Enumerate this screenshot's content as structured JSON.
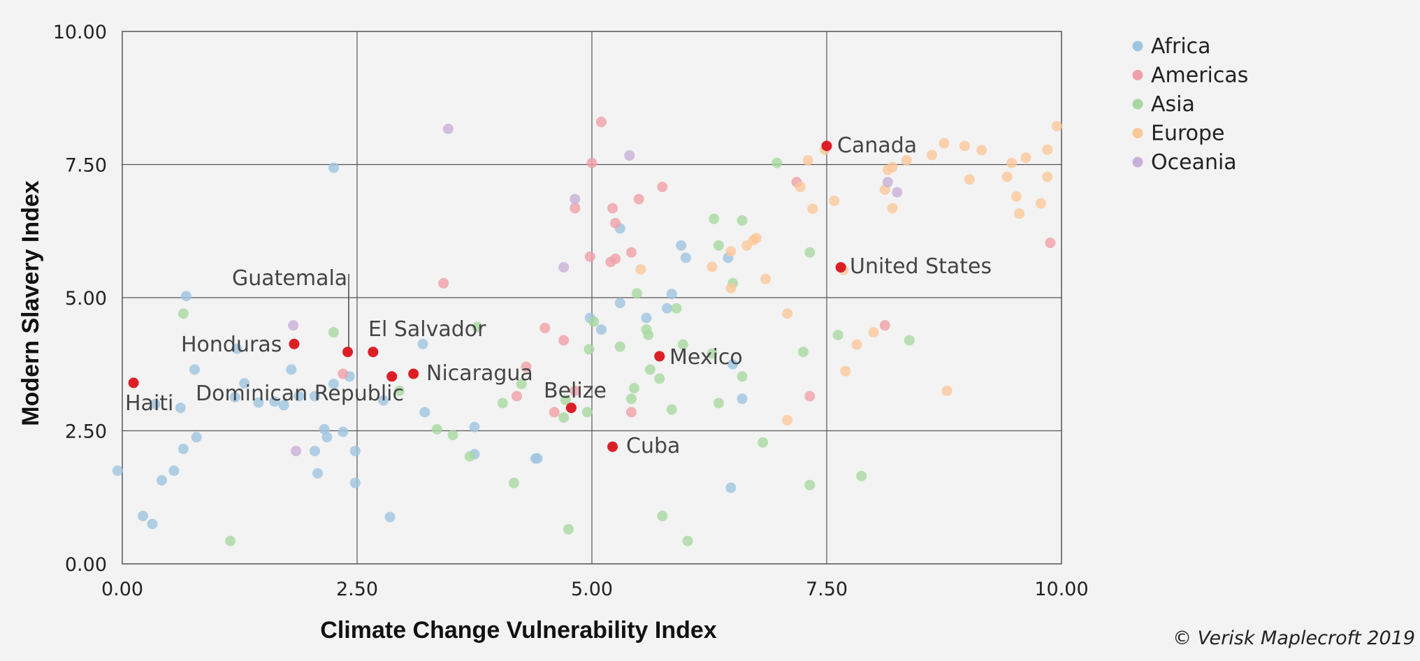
{
  "chart_data": {
    "type": "scatter",
    "xlabel": "Climate Change Vulnerability Index",
    "ylabel": "Modern Slavery Index",
    "xlim": [
      0,
      10
    ],
    "ylim": [
      0,
      10
    ],
    "xticks": [
      "0.00",
      "2.50",
      "5.00",
      "7.50",
      "10.00"
    ],
    "yticks": [
      "0.00",
      "2.50",
      "5.00",
      "7.50",
      "10.00"
    ],
    "grid": true,
    "legend": "top-right",
    "credit": "© Verisk Maplecroft 2019",
    "series": [
      {
        "name": "Africa",
        "color": "#9ec4e0",
        "points": [
          [
            -0.05,
            1.75
          ],
          [
            0.22,
            0.9
          ],
          [
            0.32,
            0.75
          ],
          [
            0.42,
            1.57
          ],
          [
            0.55,
            1.75
          ],
          [
            0.62,
            2.93
          ],
          [
            0.65,
            2.16
          ],
          [
            0.68,
            5.03
          ],
          [
            0.77,
            3.65
          ],
          [
            0.79,
            2.38
          ],
          [
            0.35,
            3.0
          ],
          [
            1.2,
            3.13
          ],
          [
            1.22,
            4.04
          ],
          [
            1.3,
            3.39
          ],
          [
            1.45,
            3.03
          ],
          [
            1.62,
            3.05
          ],
          [
            1.72,
            2.98
          ],
          [
            1.8,
            3.65
          ],
          [
            1.88,
            3.15
          ],
          [
            2.05,
            3.15
          ],
          [
            2.05,
            2.12
          ],
          [
            2.08,
            1.7
          ],
          [
            2.15,
            2.53
          ],
          [
            2.18,
            2.38
          ],
          [
            2.25,
            3.38
          ],
          [
            2.25,
            7.44
          ],
          [
            2.35,
            2.48
          ],
          [
            2.42,
            3.52
          ],
          [
            2.48,
            2.12
          ],
          [
            2.48,
            1.52
          ],
          [
            2.78,
            3.07
          ],
          [
            2.85,
            0.88
          ],
          [
            3.2,
            4.13
          ],
          [
            3.22,
            2.85
          ],
          [
            3.75,
            2.57
          ],
          [
            3.75,
            2.06
          ],
          [
            4.4,
            1.98
          ],
          [
            4.42,
            1.98
          ],
          [
            4.98,
            4.62
          ],
          [
            5.1,
            4.4
          ],
          [
            5.3,
            4.9
          ],
          [
            5.3,
            6.3
          ],
          [
            5.58,
            4.62
          ],
          [
            5.8,
            4.8
          ],
          [
            5.85,
            5.07
          ],
          [
            5.95,
            5.98
          ],
          [
            6.0,
            5.75
          ],
          [
            6.45,
            5.75
          ],
          [
            6.5,
            3.75
          ],
          [
            6.48,
            1.43
          ],
          [
            6.6,
            3.1
          ]
        ]
      },
      {
        "name": "Americas",
        "color": "#f0a0a8",
        "points": [
          [
            2.35,
            3.57
          ],
          [
            3.42,
            5.27
          ],
          [
            4.2,
            3.15
          ],
          [
            4.3,
            3.7
          ],
          [
            4.5,
            4.43
          ],
          [
            4.6,
            2.85
          ],
          [
            4.7,
            4.2
          ],
          [
            4.82,
            6.68
          ],
          [
            4.82,
            3.25
          ],
          [
            4.98,
            5.77
          ],
          [
            5.0,
            7.53
          ],
          [
            5.1,
            8.3
          ],
          [
            5.2,
            5.67
          ],
          [
            5.22,
            6.68
          ],
          [
            5.25,
            6.4
          ],
          [
            5.25,
            5.73
          ],
          [
            5.42,
            5.85
          ],
          [
            5.42,
            2.85
          ],
          [
            5.5,
            6.85
          ],
          [
            5.75,
            7.08
          ],
          [
            7.18,
            7.17
          ],
          [
            7.32,
            3.15
          ],
          [
            8.12,
            4.48
          ],
          [
            9.88,
            6.03
          ]
        ]
      },
      {
        "name": "Asia",
        "color": "#a8d8a0",
        "points": [
          [
            0.65,
            4.7
          ],
          [
            1.15,
            0.43
          ],
          [
            2.25,
            4.35
          ],
          [
            2.95,
            3.25
          ],
          [
            3.35,
            2.53
          ],
          [
            3.52,
            2.42
          ],
          [
            3.7,
            2.02
          ],
          [
            3.78,
            4.45
          ],
          [
            4.05,
            3.02
          ],
          [
            4.17,
            1.52
          ],
          [
            4.25,
            3.38
          ],
          [
            4.7,
            2.75
          ],
          [
            4.72,
            3.08
          ],
          [
            4.75,
            0.65
          ],
          [
            4.95,
            2.85
          ],
          [
            4.97,
            4.03
          ],
          [
            5.02,
            4.55
          ],
          [
            5.3,
            4.08
          ],
          [
            5.42,
            3.1
          ],
          [
            5.45,
            3.3
          ],
          [
            5.48,
            5.08
          ],
          [
            5.58,
            4.4
          ],
          [
            5.6,
            4.3
          ],
          [
            5.62,
            3.65
          ],
          [
            5.72,
            3.48
          ],
          [
            5.75,
            0.9
          ],
          [
            5.85,
            2.9
          ],
          [
            5.9,
            4.8
          ],
          [
            5.97,
            4.12
          ],
          [
            6.02,
            0.43
          ],
          [
            6.28,
            3.95
          ],
          [
            6.3,
            6.48
          ],
          [
            6.35,
            5.98
          ],
          [
            6.35,
            3.02
          ],
          [
            6.5,
            5.27
          ],
          [
            6.6,
            6.45
          ],
          [
            6.6,
            3.52
          ],
          [
            6.82,
            2.28
          ],
          [
            6.97,
            7.53
          ],
          [
            7.25,
            3.98
          ],
          [
            7.32,
            5.85
          ],
          [
            7.32,
            1.48
          ],
          [
            7.62,
            4.3
          ],
          [
            7.87,
            1.65
          ],
          [
            8.38,
            4.2
          ]
        ]
      },
      {
        "name": "Europe",
        "color": "#fbc89a",
        "points": [
          [
            5.52,
            5.53
          ],
          [
            6.28,
            5.58
          ],
          [
            6.48,
            5.87
          ],
          [
            6.48,
            5.18
          ],
          [
            6.65,
            5.98
          ],
          [
            6.72,
            6.08
          ],
          [
            6.75,
            6.12
          ],
          [
            6.85,
            5.35
          ],
          [
            7.08,
            4.7
          ],
          [
            7.08,
            2.7
          ],
          [
            7.22,
            7.08
          ],
          [
            7.3,
            7.58
          ],
          [
            7.35,
            6.67
          ],
          [
            7.48,
            7.78
          ],
          [
            7.58,
            6.82
          ],
          [
            7.68,
            5.52
          ],
          [
            7.7,
            3.62
          ],
          [
            7.82,
            4.12
          ],
          [
            8.0,
            4.35
          ],
          [
            8.12,
            7.03
          ],
          [
            8.15,
            7.4
          ],
          [
            8.2,
            6.68
          ],
          [
            8.2,
            7.45
          ],
          [
            8.35,
            7.58
          ],
          [
            8.62,
            7.68
          ],
          [
            8.75,
            7.9
          ],
          [
            8.78,
            3.25
          ],
          [
            8.97,
            7.85
          ],
          [
            9.02,
            7.22
          ],
          [
            9.15,
            7.77
          ],
          [
            9.42,
            7.27
          ],
          [
            9.47,
            7.53
          ],
          [
            9.52,
            6.9
          ],
          [
            9.55,
            6.58
          ],
          [
            9.62,
            7.63
          ],
          [
            9.78,
            6.77
          ],
          [
            9.85,
            7.78
          ],
          [
            9.85,
            7.27
          ],
          [
            9.95,
            8.22
          ]
        ]
      },
      {
        "name": "Oceania",
        "color": "#c8b0d8",
        "points": [
          [
            1.82,
            4.48
          ],
          [
            1.85,
            2.12
          ],
          [
            3.47,
            8.17
          ],
          [
            4.7,
            5.57
          ],
          [
            4.82,
            6.85
          ],
          [
            5.4,
            7.67
          ],
          [
            8.15,
            7.17
          ],
          [
            8.25,
            6.98
          ]
        ]
      }
    ],
    "highlighted": {
      "color": "#dc1f26",
      "points": [
        {
          "label": "Haiti",
          "x": 0.12,
          "y": 3.4
        },
        {
          "label": "Honduras",
          "x": 1.83,
          "y": 4.13
        },
        {
          "label": "Guatemala",
          "x": 2.4,
          "y": 3.98
        },
        {
          "label": "El Salvador",
          "x": 2.67,
          "y": 3.98
        },
        {
          "label": "",
          "x": 2.87,
          "y": 3.52
        },
        {
          "label": "Nicaragua",
          "x": 3.1,
          "y": 3.57
        },
        {
          "label": "Belize",
          "x": 4.78,
          "y": 2.93
        },
        {
          "label": "Cuba",
          "x": 5.22,
          "y": 2.2
        },
        {
          "label": "Mexico",
          "x": 5.72,
          "y": 3.9
        },
        {
          "label": "Canada",
          "x": 7.5,
          "y": 7.85
        },
        {
          "label": "United States",
          "x": 7.65,
          "y": 5.57
        }
      ],
      "extra_labels": [
        "Dominican Republic"
      ]
    }
  }
}
